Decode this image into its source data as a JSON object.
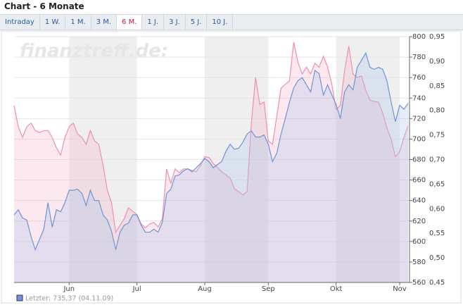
{
  "header": {
    "title": "Chart - 6 Monate",
    "tabs": [
      {
        "label": "Intraday"
      },
      {
        "label": "1 W."
      },
      {
        "label": "1 M."
      },
      {
        "label": "3 M."
      },
      {
        "label": "6 M.",
        "active": true
      },
      {
        "label": "1 J."
      },
      {
        "label": "3 J."
      },
      {
        "label": "5 J."
      },
      {
        "label": "10 J."
      }
    ]
  },
  "chart_data": {
    "type": "line",
    "watermark": "finanztreff.de:",
    "legend": "Letzter: 735,37 (04.11.09)",
    "categories": [
      null,
      null,
      null,
      null,
      null,
      null,
      null,
      null,
      null,
      null,
      null,
      null,
      null,
      "Jun",
      null,
      null,
      null,
      null,
      null,
      null,
      null,
      null,
      null,
      null,
      null,
      null,
      null,
      null,
      null,
      "Jul",
      null,
      null,
      null,
      null,
      null,
      null,
      null,
      null,
      null,
      null,
      null,
      null,
      null,
      null,
      null,
      "Aug",
      null,
      null,
      null,
      null,
      null,
      null,
      null,
      null,
      null,
      null,
      null,
      null,
      null,
      null,
      "Sep",
      null,
      null,
      null,
      null,
      null,
      null,
      null,
      null,
      null,
      null,
      null,
      null,
      null,
      null,
      null,
      "Okt",
      null,
      null,
      null,
      null,
      null,
      null,
      null,
      null,
      null,
      null,
      null,
      null,
      null,
      null,
      "Nov",
      null,
      null
    ],
    "ylim": [
      560,
      800
    ],
    "yticks": [
      560,
      580,
      600,
      620,
      640,
      660,
      680,
      700,
      720,
      740,
      760,
      780,
      800
    ],
    "y2lim": [
      0.45,
      0.95
    ],
    "y2ticks": [
      {
        "value": 0.45,
        "label": "0,45"
      },
      {
        "value": 0.5,
        "label": "0,50"
      },
      {
        "value": 0.55,
        "label": "0,55"
      },
      {
        "value": 0.6,
        "label": "0,60"
      },
      {
        "value": 0.65,
        "label": "0,65"
      },
      {
        "value": 0.7,
        "label": "0,70"
      },
      {
        "value": 0.75,
        "label": "0,75"
      },
      {
        "value": 0.8,
        "label": "0,80"
      },
      {
        "value": 0.85,
        "label": "0,85"
      },
      {
        "value": 0.9,
        "label": "0,90"
      },
      {
        "value": 0.95,
        "label": "0,95"
      }
    ],
    "grid": true,
    "series": [
      {
        "axis": "y2",
        "color": "#ef8fb2",
        "fill": "rgba(246,176,200,0.28)",
        "values": [
          0.81,
          0.767,
          0.745,
          0.767,
          0.774,
          0.759,
          0.755,
          0.759,
          0.759,
          0.745,
          0.724,
          0.709,
          0.745,
          0.767,
          0.774,
          0.752,
          0.745,
          0.731,
          0.759,
          0.738,
          0.731,
          0.688,
          0.638,
          0.612,
          0.552,
          0.566,
          0.58,
          0.602,
          0.595,
          0.588,
          0.569,
          0.561,
          0.569,
          0.572,
          0.563,
          0.58,
          0.681,
          0.652,
          0.681,
          0.673,
          0.681,
          0.681,
          0.678,
          0.675,
          0.688,
          0.706,
          0.704,
          0.692,
          0.684,
          0.675,
          0.669,
          0.662,
          0.641,
          0.635,
          0.628,
          0.635,
          0.774,
          0.867,
          0.812,
          0.817,
          0.738,
          0.731,
          0.788,
          0.845,
          0.853,
          0.86,
          0.939,
          0.898,
          0.874,
          0.888,
          0.874,
          0.896,
          0.888,
          0.91,
          0.888,
          0.853,
          0.802,
          0.81,
          0.881,
          0.931,
          0.874,
          0.867,
          0.87,
          0.841,
          0.821,
          0.818,
          0.817,
          0.795,
          0.764,
          0.741,
          0.706,
          0.716,
          0.745,
          0.769
        ]
      },
      {
        "color": "#6f93d6",
        "fill": "rgba(170,196,232,0.30)",
        "values": [
          626,
          631,
          623,
          621,
          605,
          592,
          602,
          612,
          638,
          614,
          631,
          629,
          638,
          650,
          650,
          651,
          647,
          635,
          650,
          640,
          640,
          626,
          621,
          610,
          592,
          609,
          616,
          618,
          626,
          626,
          616,
          609,
          609,
          612,
          609,
          619,
          647,
          651,
          664,
          665,
          669,
          671,
          668,
          672,
          676,
          681,
          678,
          672,
          675,
          678,
          688,
          695,
          690,
          691,
          697,
          705,
          708,
          702,
          702,
          704,
          695,
          678,
          686,
          705,
          720,
          736,
          750,
          757,
          760,
          753,
          746,
          767,
          764,
          743,
          753,
          743,
          734,
          720,
          746,
          753,
          748,
          770,
          777,
          784,
          770,
          768,
          770,
          768,
          757,
          736,
          717,
          733,
          729,
          735
        ]
      }
    ]
  }
}
